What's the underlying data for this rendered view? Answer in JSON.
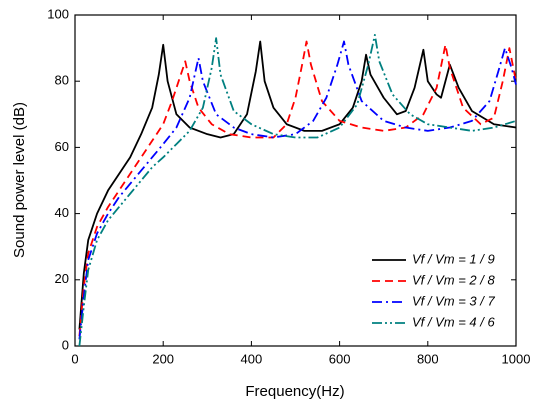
{
  "chart_data": {
    "type": "line",
    "xlabel": "Frequency(Hz)",
    "ylabel": "Sound power level (dB)",
    "xlim": [
      0,
      1000
    ],
    "xticks": [
      0,
      200,
      400,
      600,
      800,
      1000
    ],
    "ylim": [
      0,
      100
    ],
    "yticks": [
      0,
      20,
      40,
      60,
      80,
      100
    ],
    "legend": "lower right",
    "series": [
      {
        "name": "Vf / Vm = 1 / 9",
        "color": "#000000",
        "linestyle": "solid",
        "x": [
          10,
          20,
          30,
          50,
          75,
          100,
          125,
          150,
          175,
          190,
          200,
          210,
          230,
          260,
          300,
          330,
          360,
          390,
          410,
          420,
          430,
          450,
          480,
          520,
          560,
          600,
          630,
          650,
          660,
          670,
          700,
          730,
          750,
          770,
          790,
          800,
          820,
          830,
          850,
          870,
          900,
          950,
          1000
        ],
        "values": [
          5,
          22,
          32,
          40,
          47,
          52,
          57,
          64,
          72,
          82,
          91,
          80,
          70,
          66,
          64,
          63,
          64,
          70,
          83,
          92,
          80,
          72,
          67,
          65,
          65,
          67,
          72,
          80,
          88,
          82,
          75,
          70,
          71,
          78,
          89.5,
          80,
          76,
          75,
          85,
          78,
          71,
          67,
          66
        ]
      },
      {
        "name": "Vf / Vm = 2 / 8",
        "color": "#ff0000",
        "linestyle": "dashed",
        "x": [
          10,
          20,
          30,
          50,
          75,
          100,
          125,
          150,
          175,
          200,
          220,
          240,
          250,
          260,
          280,
          310,
          350,
          400,
          450,
          480,
          500,
          515,
          525,
          535,
          560,
          600,
          650,
          700,
          750,
          790,
          820,
          840,
          850,
          880,
          920,
          950,
          970,
          985,
          1000
        ],
        "values": [
          3,
          18,
          28,
          36,
          42,
          47,
          52,
          57,
          62,
          67,
          74,
          82,
          86,
          80,
          72,
          67,
          64,
          63,
          63,
          67,
          75,
          85,
          92,
          85,
          74,
          68,
          66,
          65,
          66,
          70,
          78,
          91,
          84,
          72,
          67,
          69,
          80,
          90,
          80
        ]
      },
      {
        "name": "Vf / Vm = 3 / 7",
        "color": "#0000ff",
        "linestyle": "dashdot",
        "x": [
          10,
          20,
          30,
          50,
          75,
          100,
          125,
          150,
          175,
          200,
          230,
          260,
          275,
          280,
          290,
          320,
          360,
          400,
          450,
          500,
          540,
          570,
          595,
          610,
          620,
          650,
          700,
          750,
          800,
          850,
          900,
          940,
          960,
          975,
          990,
          1000
        ],
        "values": [
          2,
          15,
          26,
          34,
          40,
          45,
          49,
          53,
          57,
          61,
          66,
          75,
          84,
          87,
          80,
          70,
          66,
          64,
          63,
          64,
          68,
          75,
          85,
          92,
          85,
          74,
          68,
          66,
          65,
          66,
          68,
          74,
          83,
          90,
          84,
          79
        ]
      },
      {
        "name": "Vf / Vm = 4 / 6",
        "color": "#008080",
        "linestyle": "dashdotdot",
        "x": [
          10,
          20,
          30,
          50,
          75,
          100,
          125,
          150,
          175,
          200,
          230,
          260,
          290,
          310,
          320,
          330,
          360,
          400,
          450,
          500,
          550,
          600,
          640,
          665,
          680,
          690,
          720,
          760,
          800,
          850,
          900,
          950,
          1000
        ],
        "values": [
          0,
          12,
          23,
          32,
          38,
          42,
          46,
          50,
          54,
          57,
          61,
          65,
          72,
          84,
          93,
          82,
          71,
          67,
          64,
          63,
          63,
          66,
          73,
          85,
          94,
          86,
          76,
          70,
          67,
          66,
          65,
          66,
          68
        ]
      }
    ]
  }
}
